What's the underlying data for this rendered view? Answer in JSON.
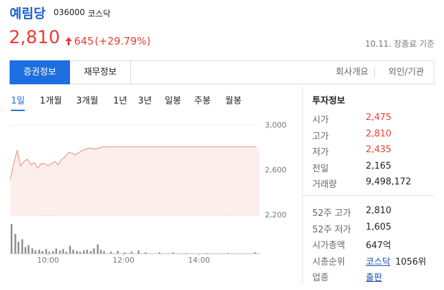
{
  "header": {
    "name": "예림당",
    "code": "036000",
    "market": "코스닥",
    "price": "2,810",
    "change": "645",
    "change_rate": "(+29.79%)",
    "as_of": "10.11. 장종료 기준"
  },
  "tabs": [
    "증권정보",
    "재무정보"
  ],
  "links": [
    "회사개요",
    "외인/기관"
  ],
  "periods": [
    "1일",
    "1개월",
    "3개월",
    "1년",
    "3년",
    "일봉",
    "주봉",
    "월봉"
  ],
  "info": {
    "title": "투자정보",
    "rows": [
      {
        "label": "시가",
        "value": "2,475",
        "color": "#ef3a36"
      },
      {
        "label": "고가",
        "value": "2,810",
        "color": "#ef3a36"
      },
      {
        "label": "저가",
        "value": "2,435",
        "color": "#ef3a36"
      },
      {
        "label": "전일",
        "value": "2,165"
      },
      {
        "label": "거래량",
        "value": "9,498,172"
      }
    ],
    "rows2": [
      {
        "label": "52주 고가",
        "value": "2,810"
      },
      {
        "label": "52주 저가",
        "value": "1,605"
      },
      {
        "label": "시가총액",
        "value": "647억"
      },
      {
        "label": "시총순위",
        "link": "코스닥",
        "value": "1056위"
      },
      {
        "label": "업종",
        "link": "출판"
      }
    ]
  },
  "chart_data": [
    {
      "type": "line",
      "color": "#f0a28e",
      "fill": "#fdeeee",
      "x": [
        540,
        545,
        551,
        556,
        562,
        567,
        573,
        578,
        584,
        589,
        595,
        600,
        605,
        611,
        616,
        622,
        627,
        633,
        644,
        655,
        665,
        676,
        687,
        704,
        930
      ],
      "values": [
        2520,
        2650,
        2780,
        2640,
        2680,
        2700,
        2650,
        2670,
        2620,
        2660,
        2660,
        2640,
        2660,
        2680,
        2650,
        2700,
        2720,
        2760,
        2740,
        2780,
        2800,
        2790,
        2810,
        2810,
        2810
      ],
      "xlim": [
        540,
        936
      ],
      "ylim": [
        2200,
        3000
      ],
      "yticks": [
        {
          "value": 2200,
          "label": "2,200"
        },
        {
          "value": 2600,
          "label": "2,600"
        },
        {
          "value": 3000,
          "label": "3,000"
        }
      ],
      "grid": true
    },
    {
      "type": "bar",
      "color": "#8a8a8a",
      "x": [
        542,
        548,
        553,
        559,
        564,
        569,
        575,
        580,
        586,
        591,
        597,
        602,
        608,
        613,
        619,
        624,
        629,
        635,
        640,
        646,
        651,
        657,
        662,
        668,
        673,
        679,
        684,
        689,
        700,
        711,
        722,
        733,
        744,
        755,
        777,
        799,
        820,
        853,
        886,
        929
      ],
      "values": [
        45,
        30,
        18,
        22,
        10,
        13,
        8,
        5,
        6,
        4,
        7,
        3,
        4,
        8,
        5,
        7,
        3,
        12,
        6,
        4,
        3,
        5,
        6,
        4,
        8,
        14,
        6,
        4,
        3,
        4,
        2,
        3,
        5,
        2,
        2,
        2,
        1,
        1,
        1,
        2
      ],
      "xlim": [
        540,
        936
      ],
      "ylim": [
        0,
        50
      ],
      "xticks": [
        {
          "value": 600,
          "label": "10:00"
        },
        {
          "value": 720,
          "label": "12:00"
        },
        {
          "value": 840,
          "label": "14:00"
        }
      ]
    }
  ]
}
